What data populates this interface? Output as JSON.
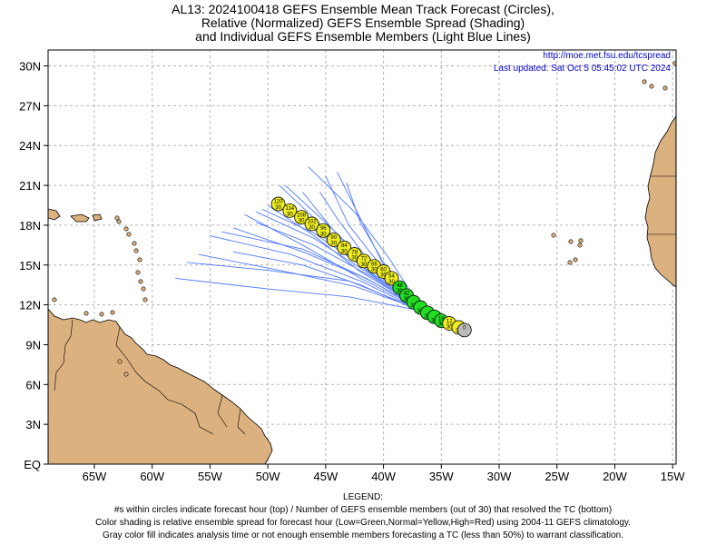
{
  "titles": {
    "line1": "AL13: 2024100418 GEFS Ensemble Mean Track Forecast (Circles),",
    "line2": "Relative (Normalized) GEFS Ensemble Spread (Shading)",
    "line3": "and Individual GEFS Ensemble Members (Light Blue Lines)"
  },
  "notes": {
    "url": "http://moe.met.fsu.edu/tcspread",
    "updated": "Last updated: Sat Oct  5 05:45:02 UTC 2024"
  },
  "legend": {
    "header": "LEGEND:",
    "line1": "#s within circles indicate forecast hour (top) / Number of GEFS ensemble members (out of 30) that resolved the TC (bottom)",
    "line2": "Color shading is relative ensemble spread for forecast hour (Low=Green,Normal=Yellow,High=Red) using 2004-11 GEFS climatology.",
    "line3": "Gray color fill indicates analysis time or not enough ensemble members forecasting a TC (less than 50%) to warrant classification."
  },
  "colors": {
    "land": "#dbb17f",
    "ocean": "#ffffff",
    "grid": "#b4b4b4",
    "member_track": "#5078ff",
    "spread_low": "#22dd22",
    "spread_normal": "#eeee22",
    "analysis_gray": "#bbbbbb",
    "note_text": "#0000c8"
  },
  "chart_data": {
    "type": "scatter",
    "xlabel": "",
    "ylabel": "",
    "xlim": [
      -69,
      -14.7
    ],
    "ylim": [
      0,
      31.2
    ],
    "xticks": [
      -65,
      -60,
      -55,
      -50,
      -45,
      -40,
      -35,
      -30,
      -25,
      -20,
      -15
    ],
    "xtick_labels": [
      "65W",
      "60W",
      "55W",
      "50W",
      "45W",
      "40W",
      "35W",
      "30W",
      "25W",
      "20W",
      "15W"
    ],
    "yticks": [
      0,
      3,
      6,
      9,
      12,
      15,
      18,
      21,
      24,
      27,
      30
    ],
    "ytick_labels": [
      "EQ",
      "3N",
      "6N",
      "9N",
      "12N",
      "15N",
      "18N",
      "21N",
      "24N",
      "27N",
      "30N"
    ],
    "grid": true,
    "mean_track": [
      {
        "hour": "0",
        "members": "",
        "lon": -33.0,
        "lat": 10.1,
        "spread": "gray"
      },
      {
        "hour": "",
        "members": "30",
        "lon": -33.5,
        "lat": 10.3,
        "spread": "normal"
      },
      {
        "hour": "12",
        "members": "30",
        "lon": -34.3,
        "lat": 10.6,
        "spread": "normal"
      },
      {
        "hour": "18",
        "members": "30",
        "lon": -35.0,
        "lat": 10.8,
        "spread": "low"
      },
      {
        "hour": "",
        "members": "30",
        "lon": -35.6,
        "lat": 11.1,
        "spread": "low"
      },
      {
        "hour": "",
        "members": "30",
        "lon": -36.2,
        "lat": 11.4,
        "spread": "low"
      },
      {
        "hour": "",
        "members": "30",
        "lon": -36.8,
        "lat": 11.8,
        "spread": "low"
      },
      {
        "hour": "",
        "members": "30",
        "lon": -37.4,
        "lat": 12.2,
        "spread": "low"
      },
      {
        "hour": "42",
        "members": "30",
        "lon": -38.0,
        "lat": 12.7,
        "spread": "low"
      },
      {
        "hour": "48",
        "members": "30",
        "lon": -38.6,
        "lat": 13.3,
        "spread": "low"
      },
      {
        "hour": "54",
        "members": "30",
        "lon": -39.3,
        "lat": 14.0,
        "spread": "normal"
      },
      {
        "hour": "60",
        "members": "30",
        "lon": -40.0,
        "lat": 14.5,
        "spread": "normal"
      },
      {
        "hour": "66",
        "members": "30",
        "lon": -40.8,
        "lat": 14.9,
        "spread": "normal"
      },
      {
        "hour": "72",
        "members": "30",
        "lon": -41.7,
        "lat": 15.3,
        "spread": "normal"
      },
      {
        "hour": "78",
        "members": "30",
        "lon": -42.5,
        "lat": 15.8,
        "spread": "normal"
      },
      {
        "hour": "84",
        "members": "30",
        "lon": -43.4,
        "lat": 16.3,
        "spread": "normal"
      },
      {
        "hour": "90",
        "members": "30",
        "lon": -44.3,
        "lat": 16.9,
        "spread": "normal"
      },
      {
        "hour": "96",
        "members": "30",
        "lon": -45.2,
        "lat": 17.6,
        "spread": "normal"
      },
      {
        "hour": "102",
        "members": "30",
        "lon": -46.2,
        "lat": 18.1,
        "spread": "normal"
      },
      {
        "hour": "108",
        "members": "30",
        "lon": -47.1,
        "lat": 18.6,
        "spread": "normal"
      },
      {
        "hour": "114",
        "members": "30",
        "lon": -48.1,
        "lat": 19.1,
        "spread": "normal"
      },
      {
        "hour": "120",
        "members": "30",
        "lon": -49.1,
        "lat": 19.6,
        "spread": "normal"
      }
    ],
    "member_tracks": [
      [
        [
          -33.0,
          10.1
        ],
        [
          -37.0,
          11.8
        ],
        [
          -41.0,
          14.3
        ],
        [
          -45.0,
          17.0
        ],
        [
          -49.0,
          19.6
        ]
      ],
      [
        [
          -33.0,
          10.1
        ],
        [
          -37.0,
          11.6
        ],
        [
          -42.0,
          13.5
        ],
        [
          -47.0,
          15.0
        ],
        [
          -53.0,
          16.0
        ]
      ],
      [
        [
          -33.0,
          10.1
        ],
        [
          -37.0,
          11.7
        ],
        [
          -43.0,
          13.8
        ],
        [
          -50.0,
          14.6
        ],
        [
          -57.0,
          15.2
        ]
      ],
      [
        [
          -33.0,
          10.1
        ],
        [
          -37.0,
          11.9
        ],
        [
          -42.0,
          14.2
        ],
        [
          -47.0,
          16.2
        ],
        [
          -54.0,
          17.5
        ]
      ],
      [
        [
          -33.0,
          10.1
        ],
        [
          -37.0,
          12.0
        ],
        [
          -41.0,
          14.6
        ],
        [
          -45.0,
          17.7
        ],
        [
          -49.0,
          21.0
        ]
      ],
      [
        [
          -33.0,
          10.1
        ],
        [
          -37.0,
          12.1
        ],
        [
          -40.0,
          15.0
        ],
        [
          -42.0,
          18.5
        ],
        [
          -44.0,
          22.0
        ]
      ],
      [
        [
          -33.0,
          10.1
        ],
        [
          -37.0,
          12.0
        ],
        [
          -40.0,
          14.7
        ],
        [
          -43.0,
          18.0
        ],
        [
          -45.0,
          21.7
        ]
      ],
      [
        [
          -33.0,
          10.1
        ],
        [
          -37.0,
          11.9
        ],
        [
          -41.0,
          14.8
        ],
        [
          -45.0,
          18.2
        ],
        [
          -48.5,
          21.0
        ]
      ],
      [
        [
          -33.0,
          10.1
        ],
        [
          -37.0,
          11.9
        ],
        [
          -42.0,
          14.5
        ],
        [
          -46.0,
          17.2
        ],
        [
          -50.0,
          19.5
        ]
      ],
      [
        [
          -33.0,
          10.1
        ],
        [
          -37.0,
          11.8
        ],
        [
          -42.0,
          14.0
        ],
        [
          -47.0,
          16.5
        ],
        [
          -52.0,
          18.8
        ]
      ],
      [
        [
          -33.0,
          10.1
        ],
        [
          -37.0,
          11.7
        ],
        [
          -42.0,
          13.8
        ],
        [
          -48.0,
          15.8
        ],
        [
          -55.0,
          17.2
        ]
      ],
      [
        [
          -33.0,
          10.1
        ],
        [
          -37.0,
          12.0
        ],
        [
          -40.0,
          15.2
        ],
        [
          -42.0,
          18.2
        ],
        [
          -43.2,
          21.2
        ]
      ],
      [
        [
          -33.0,
          10.1
        ],
        [
          -37.0,
          12.1
        ],
        [
          -39.5,
          15.5
        ],
        [
          -42.5,
          19.0
        ],
        [
          -46.5,
          22.4
        ]
      ],
      [
        [
          -33.0,
          10.1
        ],
        [
          -37.0,
          11.9
        ],
        [
          -41.5,
          14.5
        ],
        [
          -46.0,
          17.0
        ],
        [
          -51.0,
          19.0
        ]
      ],
      [
        [
          -33.0,
          10.1
        ],
        [
          -37.0,
          11.6
        ],
        [
          -43.0,
          12.6
        ],
        [
          -50.0,
          13.2
        ],
        [
          -58.0,
          14.0
        ]
      ],
      [
        [
          -33.0,
          10.1
        ],
        [
          -37.0,
          11.8
        ],
        [
          -41.0,
          14.1
        ],
        [
          -46.0,
          16.5
        ],
        [
          -51.0,
          18.2
        ]
      ],
      [
        [
          -33.0,
          10.1
        ],
        [
          -37.0,
          11.9
        ],
        [
          -41.0,
          14.6
        ],
        [
          -44.5,
          17.8
        ],
        [
          -47.0,
          20.5
        ]
      ],
      [
        [
          -33.0,
          10.1
        ],
        [
          -37.0,
          11.9
        ],
        [
          -41.0,
          14.4
        ],
        [
          -46.0,
          17.4
        ],
        [
          -50.5,
          19.2
        ]
      ],
      [
        [
          -33.0,
          10.1
        ],
        [
          -37.0,
          12.0
        ],
        [
          -41.0,
          15.0
        ],
        [
          -44.0,
          18.5
        ],
        [
          -45.5,
          20.5
        ]
      ],
      [
        [
          -33.0,
          10.1
        ],
        [
          -37.0,
          11.7
        ],
        [
          -42.5,
          13.4
        ],
        [
          -49.0,
          14.6
        ],
        [
          -56.0,
          15.8
        ]
      ],
      [
        [
          -33.0,
          10.1
        ],
        [
          -37.0,
          11.8
        ],
        [
          -41.5,
          14.0
        ],
        [
          -47.0,
          16.0
        ],
        [
          -53.0,
          17.8
        ]
      ]
    ]
  }
}
